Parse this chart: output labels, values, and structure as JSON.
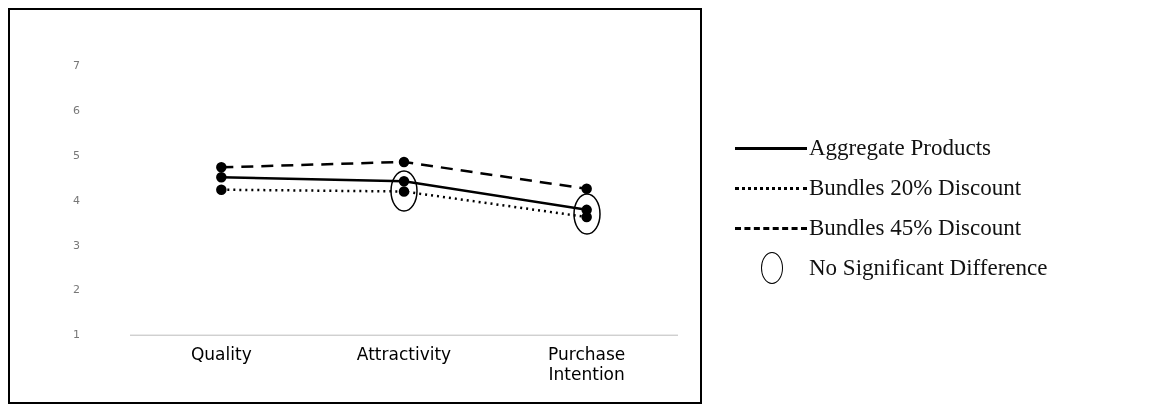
{
  "chart_data": {
    "type": "line",
    "categories": [
      "Quality",
      "Attractivity",
      "Purchase Intention"
    ],
    "series": [
      {
        "name": "Aggregate Products",
        "color": "#000000",
        "line_style": "solid",
        "values": [
          4.53,
          4.44,
          3.8
        ]
      },
      {
        "name": "Bundles 20% Discount",
        "color": "#000000",
        "line_style": "dotted",
        "values": [
          4.25,
          4.21,
          3.64
        ]
      },
      {
        "name": "Bundles 45% Discount",
        "color": "#000000",
        "line_style": "dashed",
        "values": [
          4.75,
          4.87,
          4.27
        ]
      }
    ],
    "ylim": [
      1,
      7
    ],
    "yticks": [
      1,
      2,
      3,
      4,
      5,
      6,
      7
    ],
    "grid": false,
    "legend": "right",
    "marker": "circle",
    "annotations": [
      "No Significant Difference"
    ]
  }
}
